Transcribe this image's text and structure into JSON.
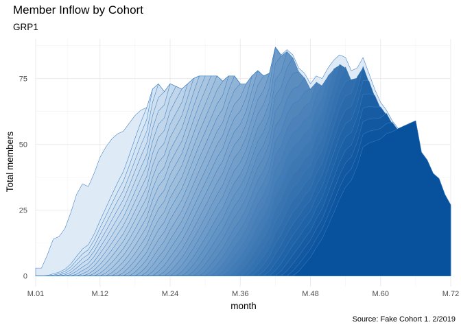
{
  "chart_data": {
    "type": "area",
    "stacked": true,
    "title": "Member Inflow by Cohort",
    "subtitle": "GRP1",
    "xlabel": "month",
    "ylabel": "Total members",
    "caption": "Source: Fake Cohort 1. 2/2019",
    "x_ticks": [
      "M.01",
      "M.12",
      "M.24",
      "M.36",
      "M.48",
      "M.60",
      "M.72"
    ],
    "x_tick_positions": [
      1,
      12,
      24,
      36,
      48,
      60,
      72
    ],
    "y_ticks": [
      0,
      25,
      50,
      75
    ],
    "xlim": [
      1,
      72
    ],
    "ylim": [
      -4,
      90
    ],
    "grid": true,
    "legend": "none",
    "colors": {
      "first_cohort": "#deebf7",
      "last_cohort": "#08519c",
      "line": "#3a7cc0"
    },
    "n_cohorts": 45,
    "total_members": [
      [
        1,
        3
      ],
      [
        2,
        3
      ],
      [
        3,
        8
      ],
      [
        4,
        14
      ],
      [
        5,
        15
      ],
      [
        6,
        18
      ],
      [
        7,
        24
      ],
      [
        8,
        31
      ],
      [
        9,
        35
      ],
      [
        10,
        34
      ],
      [
        11,
        39
      ],
      [
        12,
        45
      ],
      [
        13,
        49
      ],
      [
        14,
        52
      ],
      [
        15,
        54
      ],
      [
        16,
        55
      ],
      [
        17,
        58
      ],
      [
        18,
        61
      ],
      [
        19,
        63
      ],
      [
        20,
        64
      ],
      [
        21,
        71
      ],
      [
        22,
        73
      ],
      [
        23,
        70
      ],
      [
        24,
        73
      ],
      [
        25,
        72
      ],
      [
        26,
        71
      ],
      [
        27,
        73
      ],
      [
        28,
        75
      ],
      [
        29,
        76
      ],
      [
        30,
        76
      ],
      [
        31,
        76
      ],
      [
        32,
        76
      ],
      [
        33,
        74
      ],
      [
        34,
        76
      ],
      [
        35,
        76
      ],
      [
        36,
        73
      ],
      [
        37,
        73
      ],
      [
        38,
        76
      ],
      [
        39,
        78
      ],
      [
        40,
        76
      ],
      [
        41,
        77
      ],
      [
        42,
        87
      ],
      [
        43,
        84
      ],
      [
        44,
        86
      ],
      [
        45,
        84
      ],
      [
        46,
        79
      ],
      [
        47,
        77
      ],
      [
        48,
        73
      ],
      [
        49,
        76
      ],
      [
        50,
        75
      ],
      [
        51,
        79
      ],
      [
        52,
        82
      ],
      [
        53,
        84
      ],
      [
        54,
        83
      ],
      [
        55,
        78
      ],
      [
        56,
        79
      ],
      [
        57,
        83
      ],
      [
        58,
        77
      ],
      [
        59,
        71
      ],
      [
        60,
        66
      ],
      [
        61,
        63
      ],
      [
        62,
        59
      ],
      [
        63,
        56
      ],
      [
        64,
        57
      ],
      [
        65,
        58
      ],
      [
        66,
        59
      ],
      [
        67,
        47
      ],
      [
        68,
        44
      ],
      [
        69,
        39
      ],
      [
        70,
        37
      ],
      [
        71,
        31
      ],
      [
        72,
        27
      ]
    ]
  }
}
